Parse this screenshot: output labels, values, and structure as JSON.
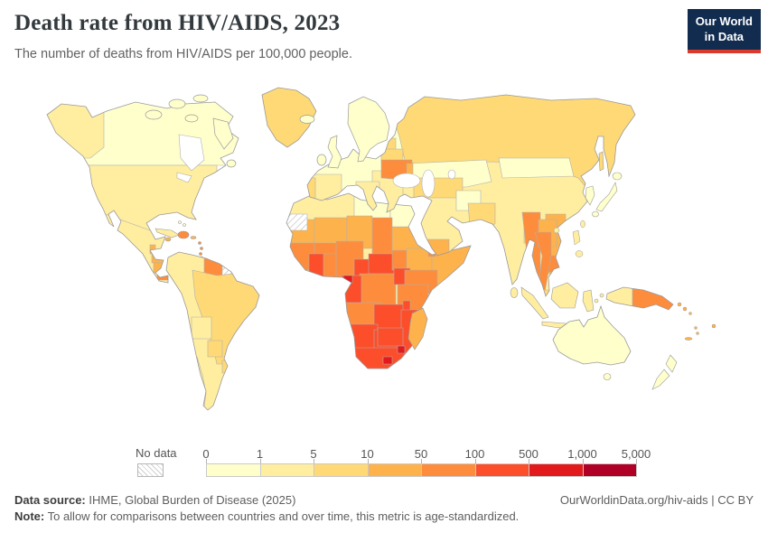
{
  "header": {
    "title": "Death rate from HIV/AIDS, 2023",
    "subtitle": "The number of deaths from HIV/AIDS per 100,000 people."
  },
  "logo": {
    "line1": "Our World",
    "line2": "in Data",
    "bg_color": "#122c4f",
    "accent_color": "#d93a2b"
  },
  "legend": {
    "no_data_label": "No data"
  },
  "footer": {
    "source_label": "Data source:",
    "source_text": " IHME, Global Burden of Disease (2025)",
    "note_label": "Note:",
    "note_text": " To allow for comparisons between countries and over time, this metric is age-standardized.",
    "link": "OurWorldinData.org/hiv-aids | CC BY"
  },
  "chart_data": {
    "type": "choropleth_map",
    "title": "Death rate from HIV/AIDS, 2023",
    "metric": "Deaths from HIV/AIDS per 100,000 people",
    "year": 2023,
    "scale_type": "log-binned",
    "tick_labels": [
      "0",
      "1",
      "5",
      "10",
      "50",
      "100",
      "500",
      "1,000",
      "5,000"
    ],
    "bins": [
      {
        "range": "0-1",
        "color": "#ffffcc"
      },
      {
        "range": "1-5",
        "color": "#ffeda0"
      },
      {
        "range": "5-10",
        "color": "#fed976"
      },
      {
        "range": "10-50",
        "color": "#feb24c"
      },
      {
        "range": "50-100",
        "color": "#fd8d3c"
      },
      {
        "range": "100-500",
        "color": "#fc4e2a"
      },
      {
        "range": "500-1,000",
        "color": "#e31a1c"
      },
      {
        "range": "1,000-5,000",
        "color": "#b10026"
      }
    ],
    "no_data_color": "hatch",
    "border_color": "#b0b0b0",
    "coast_color": "#9a9a9a",
    "regions": [
      {
        "id": "canada",
        "bin": 0
      },
      {
        "id": "alaska",
        "bin": 1
      },
      {
        "id": "arctic-islands",
        "bin": 0
      },
      {
        "id": "greenland",
        "bin": 2
      },
      {
        "id": "iceland",
        "bin": 0
      },
      {
        "id": "newfoundland",
        "bin": 0
      },
      {
        "id": "usa",
        "bin": 1
      },
      {
        "id": "mexico",
        "bin": 1
      },
      {
        "id": "guatemala",
        "bin": 1
      },
      {
        "id": "belize",
        "bin": 3
      },
      {
        "id": "honduras",
        "bin": 3
      },
      {
        "id": "nicaragua",
        "bin": 3
      },
      {
        "id": "panama",
        "bin": 4
      },
      {
        "id": "cuba",
        "bin": 1
      },
      {
        "id": "hispaniola",
        "bin": 4
      },
      {
        "id": "jamaica",
        "bin": 3
      },
      {
        "id": "puerto-rico",
        "bin": 3
      },
      {
        "id": "lesser-antilles",
        "bin": 4
      },
      {
        "id": "trinidad",
        "bin": 3
      },
      {
        "id": "bahamas",
        "bin": 0
      },
      {
        "id": "south-america",
        "bin": 1
      },
      {
        "id": "guyanas",
        "bin": 4
      },
      {
        "id": "french-guiana",
        "bin": -1
      },
      {
        "id": "brazil",
        "bin": 2
      },
      {
        "id": "bolivia",
        "bin": 1
      },
      {
        "id": "paraguay",
        "bin": 2
      },
      {
        "id": "uruguay",
        "bin": 2
      },
      {
        "id": "europe",
        "bin": 0
      },
      {
        "id": "scandinavia",
        "bin": 0
      },
      {
        "id": "uk",
        "bin": 0
      },
      {
        "id": "ireland",
        "bin": 0
      },
      {
        "id": "spain",
        "bin": 1
      },
      {
        "id": "portugal",
        "bin": 2
      },
      {
        "id": "italy",
        "bin": 1
      },
      {
        "id": "balkans",
        "bin": 1
      },
      {
        "id": "baltics",
        "bin": 2
      },
      {
        "id": "belarus",
        "bin": 2
      },
      {
        "id": "ukraine",
        "bin": 4
      },
      {
        "id": "moldova",
        "bin": 3
      },
      {
        "id": "eurasia-base",
        "bin": 1
      },
      {
        "id": "russia",
        "bin": 2
      },
      {
        "id": "sakhalin",
        "bin": 2
      },
      {
        "id": "kazakhstan",
        "bin": 0
      },
      {
        "id": "central-asia",
        "bin": 2
      },
      {
        "id": "afghanistan",
        "bin": 0
      },
      {
        "id": "pakistan",
        "bin": 2
      },
      {
        "id": "mongolia",
        "bin": 0
      },
      {
        "id": "korea",
        "bin": 0
      },
      {
        "id": "japan",
        "bin": 0
      },
      {
        "id": "yemen",
        "bin": 3
      },
      {
        "id": "bangladesh",
        "bin": 2
      },
      {
        "id": "myanmar",
        "bin": 4
      },
      {
        "id": "vietnam",
        "bin": 3
      },
      {
        "id": "laos",
        "bin": 3
      },
      {
        "id": "cambodia",
        "bin": 4
      },
      {
        "id": "thailand",
        "bin": 4
      },
      {
        "id": "malaysia",
        "bin": 2
      },
      {
        "id": "taiwan",
        "bin": 1
      },
      {
        "id": "hainan",
        "bin": 1
      },
      {
        "id": "philippines",
        "bin": 1
      },
      {
        "id": "sri-lanka",
        "bin": 1
      },
      {
        "id": "indonesia",
        "bin": 1
      },
      {
        "id": "west-papua",
        "bin": 1
      },
      {
        "id": "papua-new-guinea",
        "bin": 4
      },
      {
        "id": "solomon-islands",
        "bin": 3
      },
      {
        "id": "vanuatu",
        "bin": 3
      },
      {
        "id": "fiji",
        "bin": 3
      },
      {
        "id": "new-caledonia",
        "bin": 3
      },
      {
        "id": "australia",
        "bin": 0
      },
      {
        "id": "new-zealand",
        "bin": 0
      },
      {
        "id": "africa-base",
        "bin": 1
      },
      {
        "id": "western-sahara",
        "bin": -1
      },
      {
        "id": "libya",
        "bin": 0
      },
      {
        "id": "egypt",
        "bin": 0
      },
      {
        "id": "mauritania",
        "bin": 3
      },
      {
        "id": "mali",
        "bin": 3
      },
      {
        "id": "niger",
        "bin": 3
      },
      {
        "id": "chad",
        "bin": 4
      },
      {
        "id": "sudan",
        "bin": 3
      },
      {
        "id": "senegal-guinea",
        "bin": 4
      },
      {
        "id": "burkina-faso",
        "bin": 4
      },
      {
        "id": "ivory-coast",
        "bin": 5
      },
      {
        "id": "ghana",
        "bin": 4
      },
      {
        "id": "nigeria",
        "bin": 4
      },
      {
        "id": "cameroon",
        "bin": 5
      },
      {
        "id": "central-african-republic",
        "bin": 5
      },
      {
        "id": "south-sudan",
        "bin": 4
      },
      {
        "id": "ethiopia",
        "bin": 3
      },
      {
        "id": "somalia",
        "bin": 3
      },
      {
        "id": "djibouti",
        "bin": 4
      },
      {
        "id": "kenya",
        "bin": 4
      },
      {
        "id": "uganda",
        "bin": 5
      },
      {
        "id": "drc",
        "bin": 4
      },
      {
        "id": "gabon-congo",
        "bin": 5
      },
      {
        "id": "equatorial-guinea",
        "bin": 6
      },
      {
        "id": "tanzania",
        "bin": 4
      },
      {
        "id": "angola",
        "bin": 4
      },
      {
        "id": "zambia",
        "bin": 5
      },
      {
        "id": "malawi",
        "bin": 5
      },
      {
        "id": "mozambique",
        "bin": 5
      },
      {
        "id": "zimbabwe",
        "bin": 5
      },
      {
        "id": "namibia",
        "bin": 5
      },
      {
        "id": "botswana",
        "bin": 5
      },
      {
        "id": "south-africa",
        "bin": 5
      },
      {
        "id": "lesotho",
        "bin": 6
      },
      {
        "id": "eswatini",
        "bin": 6
      },
      {
        "id": "madagascar",
        "bin": 3
      }
    ]
  }
}
